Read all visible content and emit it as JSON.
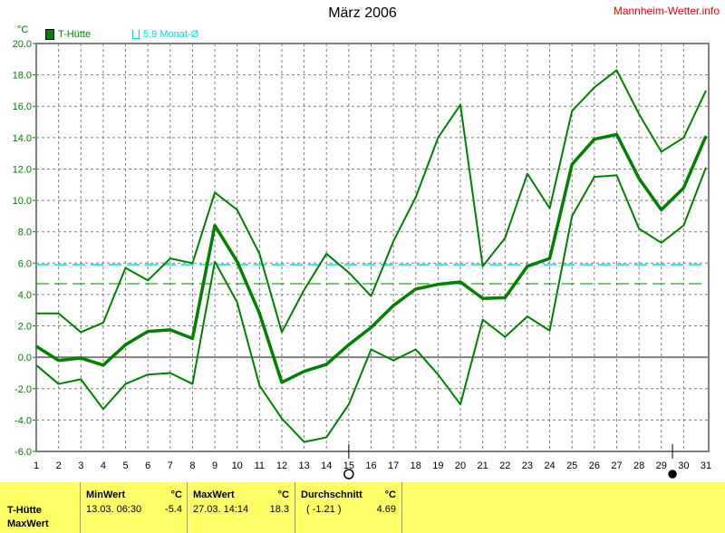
{
  "header": {
    "title": "März 2006",
    "site": "Mannheim-Wetter.info",
    "unit": "°C"
  },
  "legend": [
    {
      "label": "T-Hütte",
      "color": "#008000"
    },
    {
      "label": "5.9 Monat-Ø",
      "color": "#00e0e0"
    }
  ],
  "chart_data": {
    "type": "line",
    "title": "März 2006",
    "ylabel": "°C",
    "x": [
      1,
      2,
      3,
      4,
      5,
      6,
      7,
      8,
      9,
      10,
      11,
      12,
      13,
      14,
      15,
      16,
      17,
      18,
      19,
      20,
      21,
      22,
      23,
      24,
      25,
      26,
      27,
      28,
      29,
      30,
      31
    ],
    "ylim": [
      -6,
      20
    ],
    "yticks": [
      "20.0",
      "18.0",
      "16.0",
      "14.0",
      "12.0",
      "10.0",
      "8.0",
      "6.0",
      "4.0",
      "2.0",
      "0.0",
      "-2.0",
      "-4.0",
      "-6.0"
    ],
    "grid": true,
    "series": [
      {
        "role": "max",
        "color": "#008000",
        "values": [
          2.8,
          2.8,
          1.6,
          2.2,
          5.7,
          4.9,
          6.3,
          6.0,
          10.5,
          9.4,
          6.6,
          1.6,
          4.3,
          6.6,
          5.4,
          3.9,
          7.4,
          10.2,
          14.0,
          16.1,
          5.8,
          7.6,
          11.7,
          9.5,
          15.7,
          17.2,
          18.3,
          15.5,
          13.1,
          14.0,
          17.0
        ]
      },
      {
        "name": "T-Hütte",
        "role": "mean",
        "color": "#008000",
        "values": [
          0.7,
          -0.2,
          -0.05,
          -0.5,
          0.8,
          1.65,
          1.75,
          1.2,
          8.4,
          6.1,
          2.8,
          -1.6,
          -0.9,
          -0.45,
          0.8,
          1.9,
          3.3,
          4.35,
          4.65,
          4.8,
          3.75,
          3.8,
          5.8,
          6.3,
          12.3,
          13.9,
          14.2,
          11.4,
          9.4,
          10.8,
          14.1
        ]
      },
      {
        "role": "min",
        "color": "#008000",
        "values": [
          -0.5,
          -1.7,
          -1.4,
          -3.3,
          -1.7,
          -1.1,
          -1.0,
          -1.7,
          6.1,
          3.5,
          -1.8,
          -3.9,
          -5.4,
          -5.1,
          -3.0,
          0.5,
          -0.2,
          0.5,
          -1.1,
          -3.0,
          2.4,
          1.3,
          2.6,
          1.7,
          9.0,
          11.5,
          11.6,
          8.2,
          7.3,
          8.4,
          12.1
        ]
      }
    ],
    "reference_lines": [
      {
        "label": "5.9 Monat-Ø",
        "value": 5.9,
        "color": "#00e0e0"
      },
      {
        "value": 4.69,
        "color": "#008000"
      }
    ],
    "moon_phases": [
      {
        "phase": "full",
        "day": 15
      },
      {
        "phase": "new",
        "day": 29.5
      }
    ]
  },
  "table": {
    "row_labels": [
      "T-Hütte",
      "MaxWert"
    ],
    "min": {
      "header": "MinWert",
      "unit": "°C",
      "time": "13.03.  06:30",
      "value": "-5.4"
    },
    "max": {
      "header": "MaxWert",
      "unit": "°C",
      "time": "27.03.  14:14",
      "value": "18.3"
    },
    "avg": {
      "header": "Durchschnitt",
      "unit": "°C",
      "dev": "( -1.21 )",
      "value": "4.69"
    }
  }
}
